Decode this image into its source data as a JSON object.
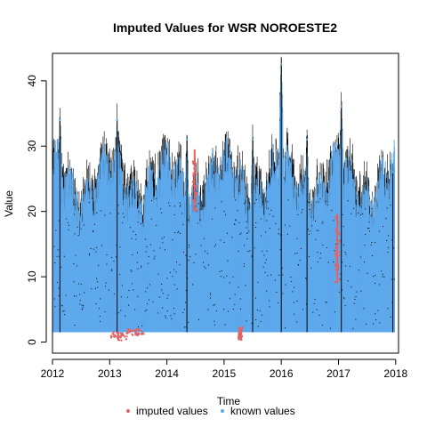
{
  "chart_data": {
    "type": "scatter",
    "title": "Imputed Values for  WSR NOROESTE2",
    "xlabel": "Time",
    "ylabel": "Value",
    "xlim": [
      2012.0,
      2018.05
    ],
    "ylim": [
      -1.7,
      44.2
    ],
    "x_ticks": [
      2012,
      2013,
      2014,
      2015,
      2016,
      2017,
      2018
    ],
    "x_tick_labels": [
      "2012",
      "2013",
      "2014",
      "2015",
      "2016",
      "2017",
      "2018"
    ],
    "y_ticks": [
      0,
      10,
      20,
      30,
      40
    ],
    "y_tick_labels": [
      "0",
      "10",
      "20",
      "30",
      "40"
    ],
    "grid": false,
    "legend": {
      "placement": "bottom-center",
      "entries": [
        {
          "label": "imputed values",
          "color": "#E06467"
        },
        {
          "label": "known values",
          "color": "#5EA9EC"
        }
      ]
    },
    "series": [
      {
        "name": "known values",
        "color": "#5EA9EC",
        "representation": "seasonal daily range envelope (min–typical high) with occasional spikes",
        "baseline_min": 1.5,
        "peaks": [
          {
            "x": 2012.13,
            "y": 34.0
          },
          {
            "x": 2013.13,
            "y": 34.0
          },
          {
            "x": 2014.35,
            "y": 31.0
          },
          {
            "x": 2015.5,
            "y": 31.0
          },
          {
            "x": 2016.0,
            "y": 42.5
          },
          {
            "x": 2016.45,
            "y": 31.0
          },
          {
            "x": 2017.05,
            "y": 36.0
          },
          {
            "x": 2017.95,
            "y": 26.0
          }
        ]
      },
      {
        "name": "imputed values",
        "color": "#E06467",
        "segments": [
          {
            "x_start": 2013.0,
            "x_end": 2013.3,
            "y_min": 0.2,
            "y_max": 1.6
          },
          {
            "x_start": 2013.3,
            "x_end": 2013.6,
            "y_min": 1.0,
            "y_max": 2.0
          },
          {
            "x_start": 2014.45,
            "x_end": 2014.52,
            "y_min": 20.0,
            "y_max": 29.5
          },
          {
            "x_start": 2015.25,
            "x_end": 2015.32,
            "y_min": 0.3,
            "y_max": 2.3
          },
          {
            "x_start": 2016.94,
            "x_end": 2017.02,
            "y_min": 9.0,
            "y_max": 19.5
          }
        ]
      }
    ],
    "black_series": {
      "name": "",
      "color": "#000000",
      "representation": "underlying observed line behind points"
    }
  }
}
